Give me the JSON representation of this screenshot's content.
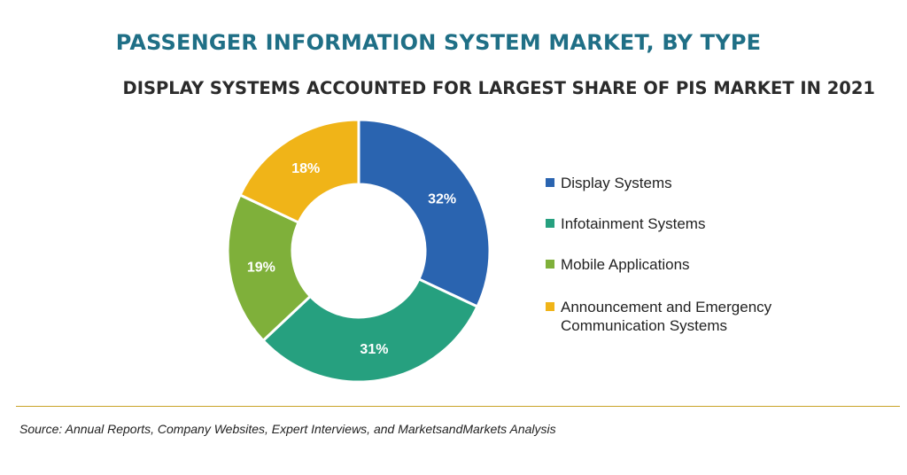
{
  "header": {
    "title": "PASSENGER INFORMATION SYSTEM MARKET, BY TYPE",
    "subtitle": "DISPLAY SYSTEMS ACCOUNTED FOR LARGEST SHARE OF PIS MARKET IN 2021"
  },
  "chart_data": {
    "type": "pie",
    "donut": true,
    "categories": [
      "Display Systems",
      "Infotainment Systems",
      "Mobile Applications",
      "Announcement and Emergency Communication Systems"
    ],
    "values": [
      32,
      31,
      19,
      18
    ],
    "labels": [
      "32%",
      "31%",
      "19%",
      "18%"
    ],
    "colors": [
      "#2a64b0",
      "#26a07f",
      "#7fb03a",
      "#f0b418"
    ],
    "legend_position": "right"
  },
  "legend": {
    "items": [
      {
        "label": "Display Systems",
        "color": "#2a64b0"
      },
      {
        "label": "Infotainment Systems",
        "color": "#26a07f"
      },
      {
        "label": "Mobile Applications",
        "color": "#7fb03a"
      },
      {
        "label": "Announcement and Emergency Communication Systems",
        "color": "#f0b418"
      }
    ]
  },
  "footer": {
    "source": "Source: Annual Reports, Company Websites, Expert Interviews, and MarketsandMarkets Analysis"
  }
}
